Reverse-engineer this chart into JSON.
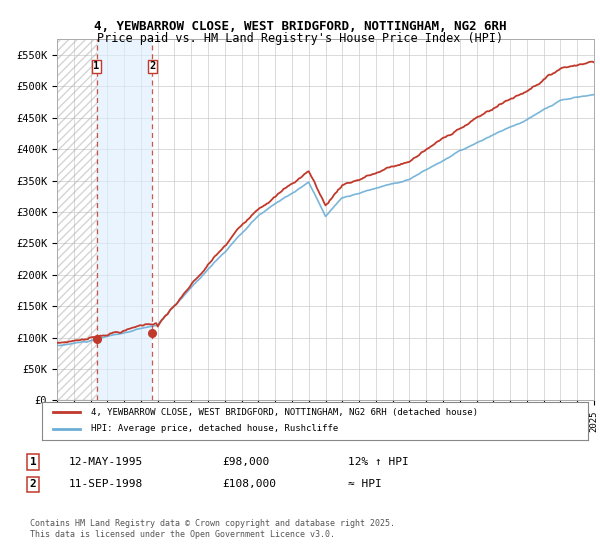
{
  "title": "4, YEWBARROW CLOSE, WEST BRIDGFORD, NOTTINGHAM, NG2 6RH",
  "subtitle": "Price paid vs. HM Land Registry's House Price Index (HPI)",
  "ylabel_ticks": [
    "£0",
    "£50K",
    "£100K",
    "£150K",
    "£200K",
    "£250K",
    "£300K",
    "£350K",
    "£400K",
    "£450K",
    "£500K",
    "£550K"
  ],
  "ytick_values": [
    0,
    50000,
    100000,
    150000,
    200000,
    250000,
    300000,
    350000,
    400000,
    450000,
    500000,
    550000
  ],
  "ylim": [
    0,
    575000
  ],
  "x_start_year": 1993,
  "x_end_year": 2025,
  "purchase1_year": 1995.36,
  "purchase1_price": 98000,
  "purchase2_year": 1998.69,
  "purchase2_price": 108000,
  "hpi_color": "#6baed6",
  "price_color": "#c0392b",
  "legend_line1": "4, YEWBARROW CLOSE, WEST BRIDGFORD, NOTTINGHAM, NG2 6RH (detached house)",
  "legend_line2": "HPI: Average price, detached house, Rushcliffe",
  "annotation1_date": "12-MAY-1995",
  "annotation1_price": "£98,000",
  "annotation1_hpi": "12% ↑ HPI",
  "annotation2_date": "11-SEP-1998",
  "annotation2_price": "£108,000",
  "annotation2_hpi": "≈ HPI",
  "footnote": "Contains HM Land Registry data © Crown copyright and database right 2025.\nThis data is licensed under the Open Government Licence v3.0.",
  "background_color": "#ffffff"
}
